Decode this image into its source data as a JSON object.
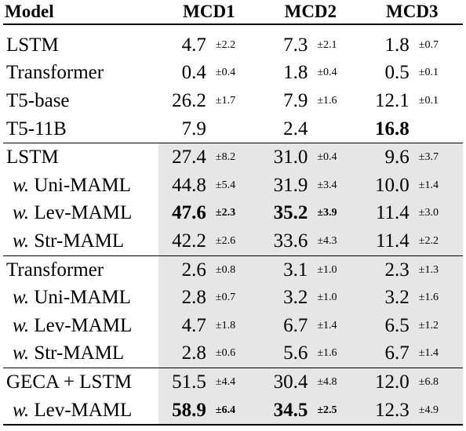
{
  "table": {
    "headers": [
      "Model",
      "MCD1",
      "MCD2",
      "MCD3"
    ],
    "groups": [
      {
        "shaded": false,
        "rows": [
          {
            "prefix": "",
            "label": "LSTM",
            "cells": [
              {
                "v": "4.7",
                "s": "±2.2",
                "b": false
              },
              {
                "v": "7.3",
                "s": "±2.1",
                "b": false
              },
              {
                "v": "1.8",
                "s": "±0.7",
                "b": false
              }
            ]
          },
          {
            "prefix": "",
            "label": "Transformer",
            "cells": [
              {
                "v": "0.4",
                "s": "±0.4",
                "b": false
              },
              {
                "v": "1.8",
                "s": "±0.4",
                "b": false
              },
              {
                "v": "0.5",
                "s": "±0.1",
                "b": false
              }
            ]
          },
          {
            "prefix": "",
            "label": "T5-base",
            "cells": [
              {
                "v": "26.2",
                "s": "±1.7",
                "b": false
              },
              {
                "v": "7.9",
                "s": "±1.6",
                "b": false
              },
              {
                "v": "12.1",
                "s": "±0.1",
                "b": false
              }
            ]
          },
          {
            "prefix": "",
            "label": "T5-11B",
            "cells": [
              {
                "v": "7.9",
                "s": "",
                "b": false
              },
              {
                "v": "2.4",
                "s": "",
                "b": false
              },
              {
                "v": "16.8",
                "s": "",
                "b": true
              }
            ]
          }
        ]
      },
      {
        "shaded": true,
        "rows": [
          {
            "prefix": "",
            "label": "LSTM",
            "cells": [
              {
                "v": "27.4",
                "s": "±8.2",
                "b": false
              },
              {
                "v": "31.0",
                "s": "±0.4",
                "b": false
              },
              {
                "v": "9.6",
                "s": "±3.7",
                "b": false
              }
            ]
          },
          {
            "prefix": "w.",
            "label": "Uni-MAML",
            "cells": [
              {
                "v": "44.8",
                "s": "±5.4",
                "b": false
              },
              {
                "v": "31.9",
                "s": "±3.4",
                "b": false
              },
              {
                "v": "10.0",
                "s": "±1.4",
                "b": false
              }
            ]
          },
          {
            "prefix": "w.",
            "label": "Lev-MAML",
            "cells": [
              {
                "v": "47.6",
                "s": "±2.3",
                "b": true
              },
              {
                "v": "35.2",
                "s": "±3.9",
                "b": true
              },
              {
                "v": "11.4",
                "s": "±3.0",
                "b": false
              }
            ]
          },
          {
            "prefix": "w.",
            "label": "Str-MAML",
            "cells": [
              {
                "v": "42.2",
                "s": "±2.6",
                "b": false
              },
              {
                "v": "33.6",
                "s": "±4.3",
                "b": false
              },
              {
                "v": "11.4",
                "s": "±2.2",
                "b": false
              }
            ]
          }
        ]
      },
      {
        "shaded": true,
        "rows": [
          {
            "prefix": "",
            "label": "Transformer",
            "cells": [
              {
                "v": "2.6",
                "s": "±0.8",
                "b": false
              },
              {
                "v": "3.1",
                "s": "±1.0",
                "b": false
              },
              {
                "v": "2.3",
                "s": "±1.3",
                "b": false
              }
            ]
          },
          {
            "prefix": "w.",
            "label": "Uni-MAML",
            "cells": [
              {
                "v": "2.8",
                "s": "±0.7",
                "b": false
              },
              {
                "v": "3.2",
                "s": "±1.0",
                "b": false
              },
              {
                "v": "3.2",
                "s": "±1.6",
                "b": false
              }
            ]
          },
          {
            "prefix": "w.",
            "label": "Lev-MAML",
            "cells": [
              {
                "v": "4.7",
                "s": "±1.8",
                "b": false
              },
              {
                "v": "6.7",
                "s": "±1.4",
                "b": false
              },
              {
                "v": "6.5",
                "s": "±1.2",
                "b": false
              }
            ]
          },
          {
            "prefix": "w.",
            "label": "Str-MAML",
            "cells": [
              {
                "v": "2.8",
                "s": "±0.6",
                "b": false
              },
              {
                "v": "5.6",
                "s": "±1.6",
                "b": false
              },
              {
                "v": "6.7",
                "s": "±1.4",
                "b": false
              }
            ]
          }
        ]
      },
      {
        "shaded": true,
        "rows": [
          {
            "prefix": "",
            "label": "GECA + LSTM",
            "cells": [
              {
                "v": "51.5",
                "s": "±4.4",
                "b": false
              },
              {
                "v": "30.4",
                "s": "±4.8",
                "b": false
              },
              {
                "v": "12.0",
                "s": "±6.8",
                "b": false
              }
            ]
          },
          {
            "prefix": "w.",
            "label": "Lev-MAML",
            "cells": [
              {
                "v": "58.9",
                "s": "±6.4",
                "b": true
              },
              {
                "v": "34.5",
                "s": "±2.5",
                "b": true
              },
              {
                "v": "12.3",
                "s": "±4.9",
                "b": false
              }
            ]
          }
        ]
      }
    ]
  }
}
